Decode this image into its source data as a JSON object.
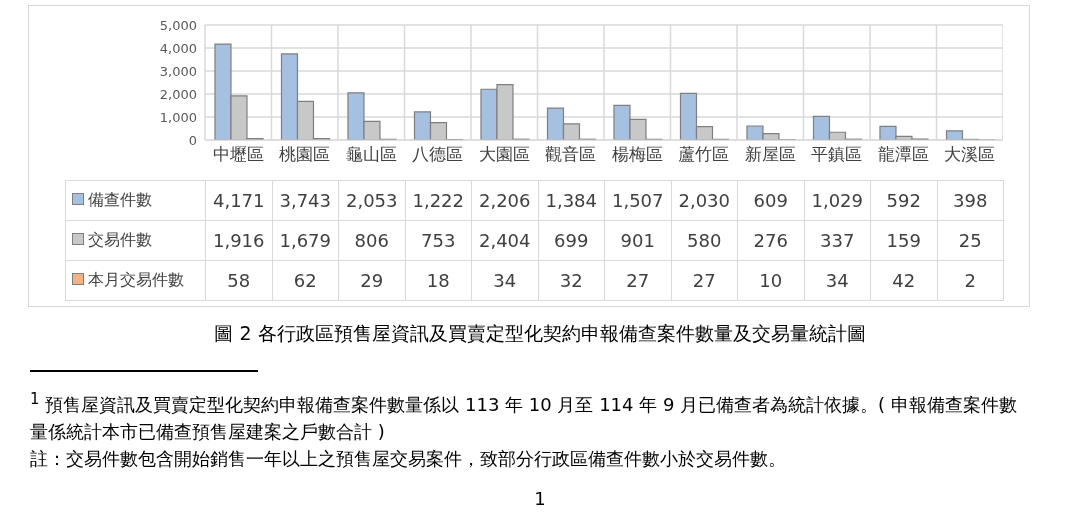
{
  "chart_data": {
    "type": "bar",
    "title": "圖  2 各行政區預售屋資訊及買賣定型化契約申報備查案件數量及交易量統計圖",
    "categories": [
      "中壢區",
      "桃園區",
      "龜山區",
      "八德區",
      "大園區",
      "觀音區",
      "楊梅區",
      "蘆竹區",
      "新屋區",
      "平鎮區",
      "龍潭區",
      "大溪區"
    ],
    "series": [
      {
        "name": "備查件數",
        "color": "#a6c0e2",
        "values": [
          4171,
          3743,
          2053,
          1222,
          2206,
          1384,
          1507,
          2030,
          609,
          1029,
          592,
          398
        ],
        "value_labels": [
          "4,171",
          "3,743",
          "2,053",
          "1,222",
          "2,206",
          "1,384",
          "1,507",
          "2,030",
          "609",
          "1,029",
          "592",
          "398"
        ]
      },
      {
        "name": "交易件數",
        "color": "#c8c8c8",
        "values": [
          1916,
          1679,
          806,
          753,
          2404,
          699,
          901,
          580,
          276,
          337,
          159,
          25
        ],
        "value_labels": [
          "1,916",
          "1,679",
          "806",
          "753",
          "2,404",
          "699",
          "901",
          "580",
          "276",
          "337",
          "159",
          "25"
        ]
      },
      {
        "name": "本月交易件數",
        "color": "#f4b183",
        "values": [
          58,
          62,
          29,
          18,
          34,
          32,
          27,
          27,
          10,
          34,
          42,
          2
        ],
        "value_labels": [
          "58",
          "62",
          "29",
          "18",
          "34",
          "32",
          "27",
          "27",
          "10",
          "34",
          "42",
          "2"
        ]
      }
    ],
    "ylim": [
      0,
      5000
    ],
    "yticks": [
      0,
      {
        "value": 1000,
        "label": "1,000"
      },
      {
        "value": 2000,
        "label": "2,000"
      },
      {
        "value": 3000,
        "label": "3,000"
      },
      {
        "value": 4000,
        "label": "4,000"
      },
      {
        "value": 5000,
        "label": "5,000"
      }
    ],
    "grid": true,
    "legend": "left",
    "annotations": [
      "$^{1}$ 預售屋資訊及買賣定型化契約申報備查案件數量係以 113 年 10 月至 114 年 9 月已備查者為統計依據。( 申報備查案件數量係統計本市已備查預售屋建案之戶數合計 )",
      "註：交易件數包含開始銷售一年以上之預售屋交易案件，致部分行政區備查件數小於交易件數。",
      "1"
    ]
  }
}
